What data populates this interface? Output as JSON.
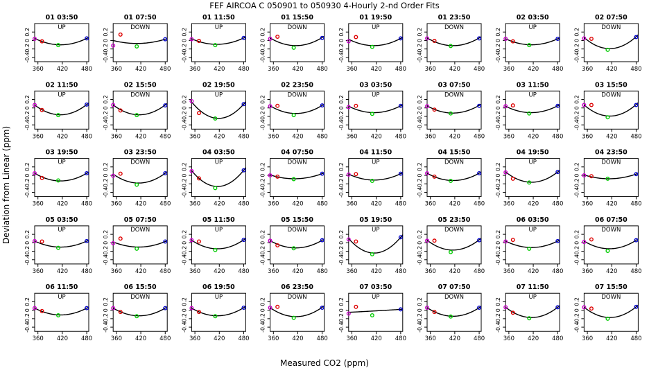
{
  "title": "FEF   AIRCOA C   050901 to 050930   4-Hourly 2-nd Order Fits",
  "xlabel": "Measured CO2 (ppm)",
  "ylabel": "Deviation from Linear (ppm)",
  "colors": {
    "point1": "#cc00cc",
    "point2": "#dd0000",
    "point3": "#00cc00",
    "point4": "#0000cc",
    "curve": "#000000"
  },
  "chart_data": {
    "type": "scatter",
    "layout": "5 rows x 8 columns small multiples",
    "x_ticks": [
      360,
      420,
      480
    ],
    "y_ticks": [
      0.2,
      0,
      -0.2,
      -0.4
    ],
    "xlim": [
      352,
      485
    ],
    "ylim": [
      -0.5,
      0.4
    ],
    "standards_x": [
      352,
      370,
      410,
      480
    ],
    "series_markers": [
      "purple",
      "red",
      "green",
      "blue"
    ],
    "panels": [
      {
        "label": "01 03:50",
        "dir": "UP",
        "points": [
          0.04,
          -0.02,
          -0.11,
          0.05
        ],
        "fit": [
          0.05,
          -0.01,
          -0.1,
          0.05
        ]
      },
      {
        "label": "01 07:50",
        "dir": "DOWN",
        "points": [
          -0.12,
          0.14,
          -0.14,
          0.03
        ],
        "fit": [
          0.0,
          -0.02,
          -0.07,
          0.03
        ]
      },
      {
        "label": "01 11:50",
        "dir": "UP",
        "points": [
          0.03,
          -0.01,
          -0.11,
          0.06
        ],
        "fit": [
          0.04,
          0.0,
          -0.09,
          0.06
        ]
      },
      {
        "label": "01 15:50",
        "dir": "DOWN",
        "points": [
          0.04,
          0.09,
          -0.17,
          0.06
        ],
        "fit": [
          0.06,
          -0.04,
          -0.12,
          0.07
        ]
      },
      {
        "label": "01 19:50",
        "dir": "UP",
        "points": [
          -0.02,
          0.08,
          -0.15,
          0.05
        ],
        "fit": [
          0.03,
          -0.04,
          -0.12,
          0.05
        ]
      },
      {
        "label": "01 23:50",
        "dir": "DOWN",
        "points": [
          0.05,
          -0.01,
          -0.13,
          0.05
        ],
        "fit": [
          0.06,
          -0.03,
          -0.12,
          0.06
        ]
      },
      {
        "label": "02 03:50",
        "dir": "UP",
        "points": [
          0.04,
          -0.02,
          -0.11,
          0.04
        ],
        "fit": [
          0.04,
          -0.02,
          -0.1,
          0.04
        ]
      },
      {
        "label": "02 07:50",
        "dir": "DOWN",
        "points": [
          0.05,
          0.04,
          -0.22,
          0.08
        ],
        "fit": [
          0.07,
          -0.07,
          -0.19,
          0.09
        ]
      },
      {
        "label": "02 11:50",
        "dir": "UP",
        "points": [
          0.07,
          -0.05,
          -0.17,
          0.08
        ],
        "fit": [
          0.07,
          -0.04,
          -0.16,
          0.08
        ]
      },
      {
        "label": "02 15:50",
        "dir": "DOWN",
        "points": [
          0.07,
          -0.06,
          -0.17,
          0.06
        ],
        "fit": [
          0.07,
          -0.06,
          -0.16,
          0.07
        ]
      },
      {
        "label": "02 19:50",
        "dir": "UP",
        "points": [
          0.16,
          -0.12,
          -0.25,
          0.09
        ],
        "fit": [
          0.14,
          -0.08,
          -0.24,
          0.09
        ]
      },
      {
        "label": "02 23:50",
        "dir": "DOWN",
        "points": [
          0.04,
          0.05,
          -0.17,
          0.06
        ],
        "fit": [
          0.05,
          -0.05,
          -0.13,
          0.06
        ]
      },
      {
        "label": "03 03:50",
        "dir": "UP",
        "points": [
          0.02,
          0.05,
          -0.14,
          0.05
        ],
        "fit": [
          0.04,
          -0.04,
          -0.11,
          0.05
        ]
      },
      {
        "label": "03 07:50",
        "dir": "DOWN",
        "points": [
          0.04,
          -0.04,
          -0.13,
          0.05
        ],
        "fit": [
          0.05,
          -0.04,
          -0.12,
          0.06
        ]
      },
      {
        "label": "03 11:50",
        "dir": "UP",
        "points": [
          0.04,
          0.06,
          -0.13,
          0.05
        ],
        "fit": [
          0.04,
          -0.03,
          -0.11,
          0.05
        ]
      },
      {
        "label": "03 15:50",
        "dir": "DOWN",
        "points": [
          0.07,
          0.07,
          -0.22,
          0.07
        ],
        "fit": [
          0.07,
          -0.06,
          -0.19,
          0.08
        ]
      },
      {
        "label": "03 19:50",
        "dir": "UP",
        "points": [
          0.05,
          -0.06,
          -0.12,
          0.05
        ],
        "fit": [
          0.05,
          -0.04,
          -0.13,
          0.05
        ]
      },
      {
        "label": "03 23:50",
        "dir": "DOWN",
        "points": [
          -0.01,
          0.04,
          -0.22,
          0.05
        ],
        "fit": [
          0.03,
          -0.07,
          -0.18,
          0.05
        ]
      },
      {
        "label": "04 03:50",
        "dir": "UP",
        "points": [
          0.1,
          -0.07,
          -0.3,
          0.12
        ],
        "fit": [
          0.11,
          -0.09,
          -0.26,
          0.12
        ]
      },
      {
        "label": "04 07:50",
        "dir": "DOWN",
        "points": [
          0.0,
          -0.03,
          -0.09,
          0.04
        ],
        "fit": [
          0.01,
          -0.03,
          -0.08,
          0.04
        ]
      },
      {
        "label": "04 11:50",
        "dir": "UP",
        "points": [
          0.02,
          0.03,
          -0.13,
          0.04
        ],
        "fit": [
          0.03,
          -0.04,
          -0.11,
          0.04
        ]
      },
      {
        "label": "04 15:50",
        "dir": "DOWN",
        "points": [
          0.05,
          -0.03,
          -0.13,
          0.05
        ],
        "fit": [
          0.05,
          -0.04,
          -0.12,
          0.05
        ]
      },
      {
        "label": "04 19:50",
        "dir": "UP",
        "points": [
          0.07,
          -0.08,
          -0.17,
          0.08
        ],
        "fit": [
          0.08,
          -0.07,
          -0.16,
          0.08
        ]
      },
      {
        "label": "04 23:50",
        "dir": "DOWN",
        "points": [
          0.0,
          -0.02,
          -0.08,
          0.03
        ],
        "fit": [
          0.01,
          -0.03,
          -0.08,
          0.03
        ]
      },
      {
        "label": "05 03:50",
        "dir": "UP",
        "points": [
          0.04,
          0.03,
          -0.12,
          0.04
        ],
        "fit": [
          0.04,
          -0.03,
          -0.1,
          0.04
        ]
      },
      {
        "label": "05 07:50",
        "dir": "DOWN",
        "points": [
          -0.01,
          0.1,
          -0.14,
          0.03
        ],
        "fit": [
          0.02,
          -0.05,
          -0.1,
          0.03
        ]
      },
      {
        "label": "05 11:50",
        "dir": "UP",
        "points": [
          0.06,
          0.03,
          -0.17,
          0.07
        ],
        "fit": [
          0.06,
          -0.05,
          -0.14,
          0.07
        ]
      },
      {
        "label": "05 15:50",
        "dir": "DOWN",
        "points": [
          0.05,
          -0.06,
          -0.13,
          0.06
        ],
        "fit": [
          0.05,
          -0.04,
          -0.12,
          0.06
        ]
      },
      {
        "label": "05 19:50",
        "dir": "UP",
        "points": [
          0.08,
          0.03,
          -0.27,
          0.13
        ],
        "fit": [
          0.1,
          -0.08,
          -0.24,
          0.13
        ]
      },
      {
        "label": "05 23:50",
        "dir": "DOWN",
        "points": [
          0.05,
          0.05,
          -0.22,
          0.06
        ],
        "fit": [
          0.06,
          -0.06,
          -0.17,
          0.07
        ]
      },
      {
        "label": "06 03:50",
        "dir": "UP",
        "points": [
          0.03,
          0.07,
          -0.14,
          0.04
        ],
        "fit": [
          0.04,
          -0.04,
          -0.11,
          0.04
        ]
      },
      {
        "label": "06 07:50",
        "dir": "DOWN",
        "points": [
          0.02,
          0.08,
          -0.19,
          0.06
        ],
        "fit": [
          0.04,
          -0.05,
          -0.14,
          0.06
        ]
      },
      {
        "label": "06 11:50",
        "dir": "UP",
        "points": [
          0.05,
          -0.02,
          -0.12,
          0.05
        ],
        "fit": [
          0.05,
          -0.03,
          -0.11,
          0.05
        ]
      },
      {
        "label": "06 15:50",
        "dir": "DOWN",
        "points": [
          0.05,
          -0.04,
          -0.14,
          0.05
        ],
        "fit": [
          0.05,
          -0.04,
          -0.13,
          0.05
        ]
      },
      {
        "label": "06 19:50",
        "dir": "UP",
        "points": [
          0.05,
          -0.04,
          -0.14,
          0.06
        ],
        "fit": [
          0.05,
          -0.04,
          -0.13,
          0.06
        ]
      },
      {
        "label": "06 23:50",
        "dir": "DOWN",
        "points": [
          0.06,
          0.08,
          -0.18,
          0.06
        ],
        "fit": [
          0.06,
          -0.05,
          -0.15,
          0.07
        ]
      },
      {
        "label": "07 03:50",
        "dir": "UP",
        "points": [
          -0.08,
          0.08,
          -0.12,
          0.02
        ],
        "fit": [
          -0.05,
          -0.03,
          -0.02,
          0.02
        ]
      },
      {
        "label": "07 07:50",
        "dir": "DOWN",
        "points": [
          0.06,
          -0.04,
          -0.15,
          0.06
        ],
        "fit": [
          0.06,
          -0.05,
          -0.14,
          0.06
        ]
      },
      {
        "label": "07 11:50",
        "dir": "UP",
        "points": [
          0.07,
          -0.06,
          -0.19,
          0.07
        ],
        "fit": [
          0.07,
          -0.06,
          -0.17,
          0.07
        ]
      },
      {
        "label": "07 15:50",
        "dir": "DOWN",
        "points": [
          0.07,
          0.04,
          -0.2,
          0.08
        ],
        "fit": [
          0.07,
          -0.06,
          -0.17,
          0.08
        ]
      }
    ]
  }
}
